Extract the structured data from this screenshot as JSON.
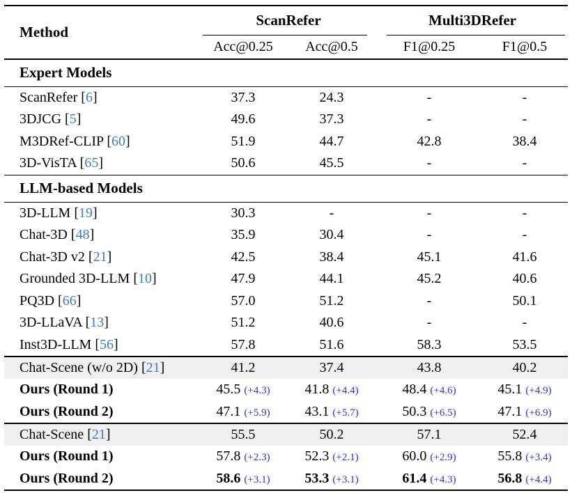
{
  "colors": {
    "citation": "#3f7cbf",
    "delta": "#3232cd",
    "highlight_row_bg": "#f0f0f0",
    "rule": "#000000"
  },
  "header": {
    "method_label": "Method",
    "groups": [
      {
        "label": "ScanRefer",
        "subcols": [
          "Acc@0.25",
          "Acc@0.5"
        ]
      },
      {
        "label": "Multi3DRefer",
        "subcols": [
          "F1@0.25",
          "F1@0.5"
        ]
      }
    ]
  },
  "sections": [
    {
      "title": "Expert Models",
      "rows": [
        {
          "method": "ScanRefer",
          "citation": "6",
          "cells": [
            {
              "value": "37.3"
            },
            {
              "value": "24.3"
            },
            {
              "value": "-"
            },
            {
              "value": "-"
            }
          ]
        },
        {
          "method": "3DJCG",
          "citation": "5",
          "cells": [
            {
              "value": "49.6"
            },
            {
              "value": "37.3"
            },
            {
              "value": "-"
            },
            {
              "value": "-"
            }
          ]
        },
        {
          "method": "M3DRef-CLIP",
          "citation": "60",
          "cells": [
            {
              "value": "51.9"
            },
            {
              "value": "44.7"
            },
            {
              "value": "42.8"
            },
            {
              "value": "38.4"
            }
          ]
        },
        {
          "method": "3D-VisTA",
          "citation": "65",
          "cells": [
            {
              "value": "50.6"
            },
            {
              "value": "45.5"
            },
            {
              "value": "-"
            },
            {
              "value": "-"
            }
          ]
        }
      ]
    },
    {
      "title": "LLM-based Models",
      "rows": [
        {
          "method": "3D-LLM",
          "citation": "19",
          "cells": [
            {
              "value": "30.3"
            },
            {
              "value": "-"
            },
            {
              "value": "-"
            },
            {
              "value": "-"
            }
          ]
        },
        {
          "method": "Chat-3D",
          "citation": "48",
          "cells": [
            {
              "value": "35.9"
            },
            {
              "value": "30.4"
            },
            {
              "value": "-"
            },
            {
              "value": "-"
            }
          ]
        },
        {
          "method": "Chat-3D v2",
          "citation": "21",
          "cells": [
            {
              "value": "42.5"
            },
            {
              "value": "38.4"
            },
            {
              "value": "45.1"
            },
            {
              "value": "41.6"
            }
          ]
        },
        {
          "method": "Grounded 3D-LLM",
          "citation": "10",
          "cells": [
            {
              "value": "47.9"
            },
            {
              "value": "44.1"
            },
            {
              "value": "45.2"
            },
            {
              "value": "40.6"
            }
          ]
        },
        {
          "method": "PQ3D",
          "citation": "66",
          "cells": [
            {
              "value": "57.0"
            },
            {
              "value": "51.2"
            },
            {
              "value": "-"
            },
            {
              "value": "50.1"
            }
          ]
        },
        {
          "method": "3D-LLaVA",
          "citation": "13",
          "cells": [
            {
              "value": "51.2"
            },
            {
              "value": "40.6"
            },
            {
              "value": "-"
            },
            {
              "value": "-"
            }
          ]
        },
        {
          "method": "Inst3D-LLM",
          "citation": "56",
          "cells": [
            {
              "value": "57.8"
            },
            {
              "value": "51.6"
            },
            {
              "value": "58.3"
            },
            {
              "value": "53.5"
            }
          ]
        }
      ]
    },
    {
      "title": null,
      "rows": [
        {
          "method": "Chat-Scene (w/o 2D)",
          "citation": "21",
          "highlight": true,
          "cells": [
            {
              "value": "41.2"
            },
            {
              "value": "37.4"
            },
            {
              "value": "43.8"
            },
            {
              "value": "40.2"
            }
          ]
        },
        {
          "method": "Ours (Round 1)",
          "bold_method": true,
          "cells": [
            {
              "value": "45.5",
              "delta": "(+4.3)"
            },
            {
              "value": "41.8",
              "delta": "(+4.4)"
            },
            {
              "value": "48.4",
              "delta": "(+4.6)"
            },
            {
              "value": "45.1",
              "delta": "(+4.9)"
            }
          ]
        },
        {
          "method": "Ours (Round 2)",
          "bold_method": true,
          "cells": [
            {
              "value": "47.1",
              "delta": "(+5.9)"
            },
            {
              "value": "43.1",
              "delta": "(+5.7)"
            },
            {
              "value": "50.3",
              "delta": "(+6.5)"
            },
            {
              "value": "47.1",
              "delta": "(+6.9)"
            }
          ]
        }
      ]
    },
    {
      "title": null,
      "rows": [
        {
          "method": "Chat-Scene",
          "citation": "21",
          "highlight": true,
          "cells": [
            {
              "value": "55.5"
            },
            {
              "value": "50.2"
            },
            {
              "value": "57.1"
            },
            {
              "value": "52.4"
            }
          ]
        },
        {
          "method": "Ours (Round 1)",
          "bold_method": true,
          "cells": [
            {
              "value": "57.8",
              "delta": "(+2.3)"
            },
            {
              "value": "52.3",
              "delta": "(+2.1)"
            },
            {
              "value": "60.0",
              "delta": "(+2.9)"
            },
            {
              "value": "55.8",
              "delta": "(+3.4)"
            }
          ]
        },
        {
          "method": "Ours (Round 2)",
          "bold_method": true,
          "bold_values": true,
          "cells": [
            {
              "value": "58.6",
              "delta": "(+3.1)"
            },
            {
              "value": "53.3",
              "delta": "(+3.1)"
            },
            {
              "value": "61.4",
              "delta": "(+4.3)"
            },
            {
              "value": "56.8",
              "delta": "(+4.4)"
            }
          ]
        }
      ]
    }
  ]
}
